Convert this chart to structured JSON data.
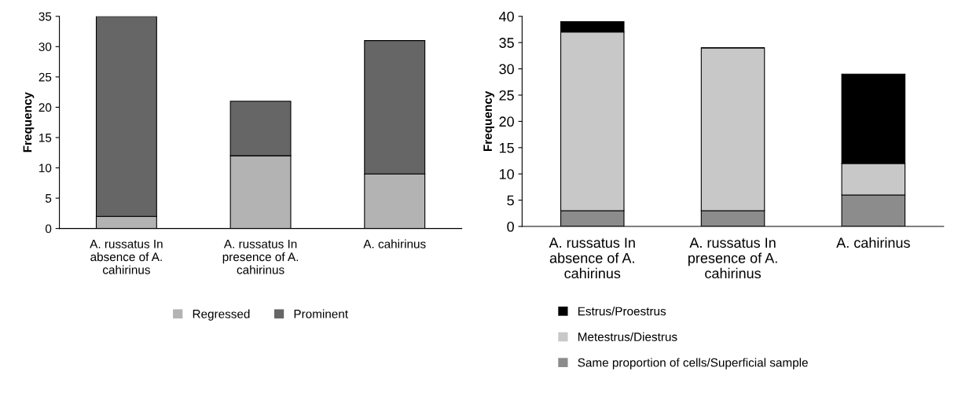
{
  "chart_data": [
    {
      "type": "bar",
      "stacked": true,
      "ylabel": "Frequency",
      "categories": [
        "A. russatus In absence of A. cahirinus",
        "A. russatus In presence of A. cahirinus",
        "A. cahirinus"
      ],
      "ylim": [
        0,
        35
      ],
      "yticks": [
        0,
        5,
        10,
        15,
        20,
        25,
        30,
        35
      ],
      "grid": false,
      "legend": "bottom",
      "series": [
        {
          "name": "Regressed",
          "color": "#b3b3b3",
          "values": [
            2,
            12,
            9
          ]
        },
        {
          "name": "Prominent",
          "color": "#666666",
          "values": [
            33,
            9,
            22
          ]
        }
      ]
    },
    {
      "type": "bar",
      "stacked": true,
      "ylabel": "Frequency",
      "categories": [
        "A. russatus In absence of A. cahirinus",
        "A. russatus In presence of A. cahirinus",
        "A. cahirinus"
      ],
      "ylim": [
        0,
        40
      ],
      "yticks": [
        0,
        5,
        10,
        15,
        20,
        25,
        30,
        35,
        40
      ],
      "grid": false,
      "legend": "bottom",
      "series": [
        {
          "name": "Same proportion of cells/Superficial sample",
          "color": "#8c8c8c",
          "values": [
            3,
            3,
            6
          ]
        },
        {
          "name": "Metestrus/Diestrus",
          "color": "#c8c8c8",
          "values": [
            34,
            31,
            6
          ]
        },
        {
          "name": "Estrus/Proestrus",
          "color": "#000000",
          "values": [
            2,
            0,
            17
          ]
        }
      ]
    }
  ]
}
